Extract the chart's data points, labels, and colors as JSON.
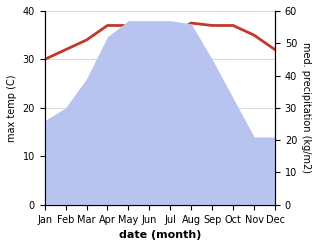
{
  "months": [
    "Jan",
    "Feb",
    "Mar",
    "Apr",
    "May",
    "Jun",
    "Jul",
    "Aug",
    "Sep",
    "Oct",
    "Nov",
    "Dec"
  ],
  "temperature": [
    30,
    32,
    34,
    37,
    37,
    36,
    35,
    37.5,
    37,
    37,
    35,
    32
  ],
  "precipitation": [
    26,
    30,
    39,
    52,
    57,
    57,
    57,
    56,
    45,
    33,
    21,
    21
  ],
  "temp_color": "#c0392b",
  "precip_fill_color": "#b8c4ef",
  "temp_ylim": [
    0,
    40
  ],
  "precip_ylim": [
    0,
    60
  ],
  "temp_yticks": [
    0,
    10,
    20,
    30,
    40
  ],
  "precip_yticks": [
    0,
    10,
    20,
    30,
    40,
    50,
    60
  ],
  "ylabel_left": "max temp (C)",
  "ylabel_right": "med. precipitation (kg/m2)",
  "xlabel": "date (month)",
  "temp_linewidth": 2.0,
  "background_color": "#ffffff",
  "grid_color": "#cccccc"
}
